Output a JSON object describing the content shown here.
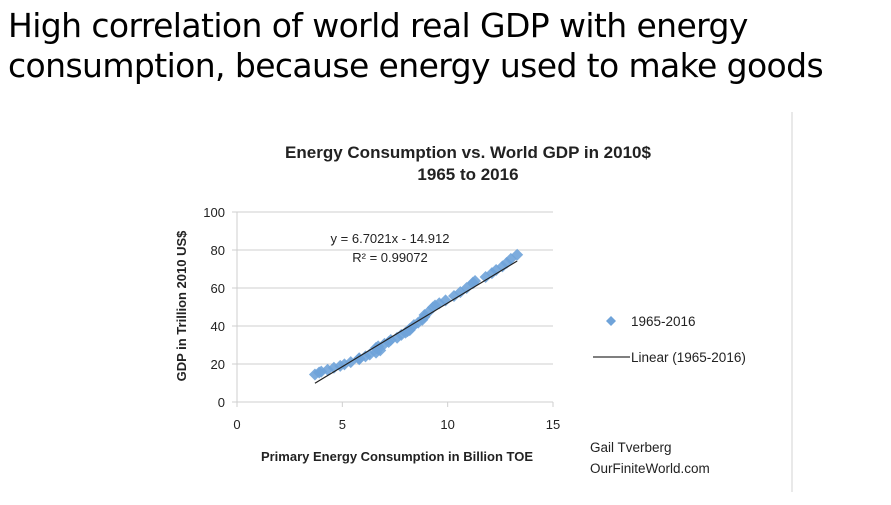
{
  "slide": {
    "title_line1": "High correlation of world real GDP with energy",
    "title_line2": "consumption, because energy used to make goods"
  },
  "credit": {
    "line1": "Gail Tverberg",
    "line2": "OurFiniteWorld.com"
  },
  "chart_data": {
    "type": "scatter",
    "title_line1": "Energy Consumption vs. World GDP in 2010$",
    "title_line2": "1965 to 2016",
    "xlabel": "Primary Energy Consumption in Billion TOE",
    "ylabel": "GDP in Trillion 2010 US$",
    "xlim": [
      0,
      15
    ],
    "ylim": [
      0,
      100
    ],
    "xticks": [
      "0",
      "5",
      "10",
      "15"
    ],
    "yticks": [
      "0",
      "20",
      "40",
      "60",
      "80",
      "100"
    ],
    "grid": "horizontal",
    "legend_position": "right",
    "series": [
      {
        "name": "1965-2016",
        "marker": "diamond",
        "color": "#6fa3d9",
        "points": [
          [
            3.7,
            14.5
          ],
          [
            3.9,
            15.5
          ],
          [
            4.0,
            16.0
          ],
          [
            4.3,
            17.0
          ],
          [
            4.6,
            18.0
          ],
          [
            4.9,
            19.0
          ],
          [
            5.1,
            19.8
          ],
          [
            5.4,
            21.0
          ],
          [
            5.8,
            22.5
          ],
          [
            5.8,
            22.8
          ],
          [
            5.8,
            23.0
          ],
          [
            6.1,
            24.0
          ],
          [
            6.3,
            25.0
          ],
          [
            6.6,
            26.0
          ],
          [
            6.8,
            27.2
          ],
          [
            6.7,
            27.8
          ],
          [
            6.6,
            28.3
          ],
          [
            6.6,
            28.5
          ],
          [
            6.7,
            29.3
          ],
          [
            7.0,
            30.6
          ],
          [
            7.2,
            31.6
          ],
          [
            7.3,
            32.6
          ],
          [
            7.6,
            33.8
          ],
          [
            7.8,
            35.3
          ],
          [
            8.0,
            36.5
          ],
          [
            8.1,
            37.3
          ],
          [
            8.2,
            37.8
          ],
          [
            8.2,
            38.5
          ],
          [
            8.3,
            39.2
          ],
          [
            8.4,
            40.5
          ],
          [
            8.6,
            41.8
          ],
          [
            8.8,
            43.3
          ],
          [
            8.9,
            44.8
          ],
          [
            8.9,
            45.8
          ],
          [
            9.1,
            47.5
          ],
          [
            9.3,
            49.8
          ],
          [
            9.4,
            50.8
          ],
          [
            9.6,
            52.0
          ],
          [
            9.9,
            53.5
          ],
          [
            10.3,
            55.8
          ],
          [
            10.6,
            57.8
          ],
          [
            10.9,
            60.0
          ],
          [
            11.2,
            62.5
          ],
          [
            11.3,
            63.7
          ],
          [
            11.2,
            62.8
          ],
          [
            11.8,
            65.8
          ],
          [
            12.1,
            67.8
          ],
          [
            12.3,
            69.5
          ],
          [
            12.6,
            71.4
          ],
          [
            12.8,
            73.2
          ],
          [
            13.0,
            75.3
          ],
          [
            13.3,
            77.5
          ]
        ]
      }
    ],
    "trendline": {
      "name": "Linear (1965-2016)",
      "slope": 6.7021,
      "intercept": -14.912,
      "equation": "y = 6.7021x - 14.912",
      "r_squared": "R² = 0.99072",
      "color": "#222222"
    }
  }
}
